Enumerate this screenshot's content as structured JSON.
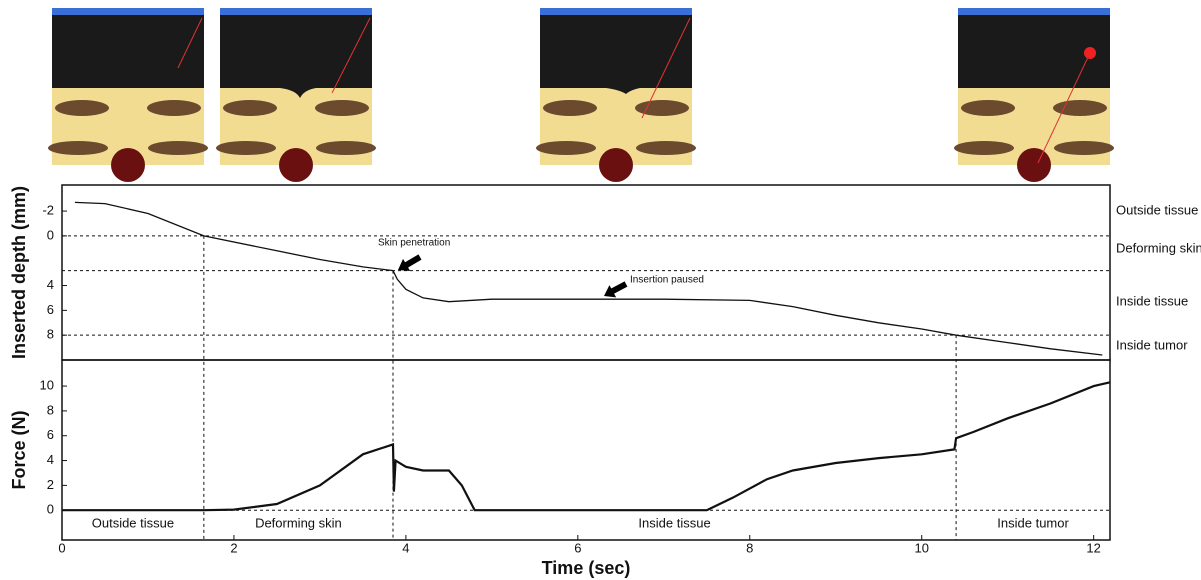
{
  "chart_data": [
    {
      "type": "line",
      "ylabel": "Inserted depth (mm)",
      "xlim": [
        0,
        12.19
      ],
      "ylim": [
        -4.1,
        10
      ],
      "y_inverted": true,
      "yticks": [
        -2,
        0,
        4,
        6,
        8
      ],
      "hlines": [
        0,
        2.8,
        8
      ],
      "region_labels": [
        "Outside tissue",
        "Deforming skin",
        "Inside tissue",
        "Inside tumor"
      ],
      "annotations": [
        "Skin penetration",
        "Insertion paused"
      ],
      "series": [
        {
          "color": "#111111",
          "x": [
            0.15,
            0.5,
            1.0,
            1.65,
            2.5,
            3.0,
            3.5,
            3.85,
            3.9,
            4.0,
            4.2,
            4.5,
            5.0,
            6.0,
            7.0,
            8.0,
            8.5,
            9.0,
            9.5,
            10.0,
            10.4,
            11.0,
            11.5,
            12.1
          ],
          "values": [
            -2.7,
            -2.6,
            -1.8,
            0,
            1.2,
            1.9,
            2.5,
            2.8,
            3.5,
            4.3,
            5.0,
            5.3,
            5.1,
            5.1,
            5.1,
            5.2,
            5.7,
            6.4,
            7.0,
            7.5,
            8.0,
            8.6,
            9.1,
            9.6
          ]
        }
      ]
    },
    {
      "type": "line",
      "xlabel": "Time (sec)",
      "ylabel": "Force (N)",
      "xlim": [
        0,
        12.19
      ],
      "ylim": [
        -2.4,
        12.1
      ],
      "xticks": [
        0,
        2,
        4,
        6,
        8,
        10,
        12
      ],
      "yticks": [
        0,
        2,
        4,
        6,
        8,
        10
      ],
      "hlines": [
        0
      ],
      "boundaries": [
        1.65,
        3.85,
        10.4
      ],
      "region_labels": [
        "Outside tissue",
        "Deforming skin",
        "Inside tissue",
        "Inside tumor"
      ],
      "series": [
        {
          "color": "#111111",
          "x": [
            0,
            1.65,
            2.0,
            2.5,
            3.0,
            3.5,
            3.85,
            3.86,
            3.88,
            4.0,
            4.2,
            4.5,
            4.65,
            4.8,
            6.0,
            7.0,
            7.5,
            7.8,
            8.2,
            8.5,
            9.0,
            9.5,
            10.0,
            10.38,
            10.4,
            10.6,
            11.0,
            11.5,
            12.0,
            12.19
          ],
          "values": [
            0,
            0,
            0.05,
            0.5,
            2.0,
            4.5,
            5.3,
            1.5,
            4.0,
            3.5,
            3.2,
            3.2,
            2.0,
            0,
            0,
            0,
            0,
            1.0,
            2.5,
            3.2,
            3.8,
            4.2,
            4.5,
            4.9,
            5.8,
            6.3,
            7.4,
            8.6,
            10.0,
            10.3
          ]
        }
      ]
    }
  ]
}
